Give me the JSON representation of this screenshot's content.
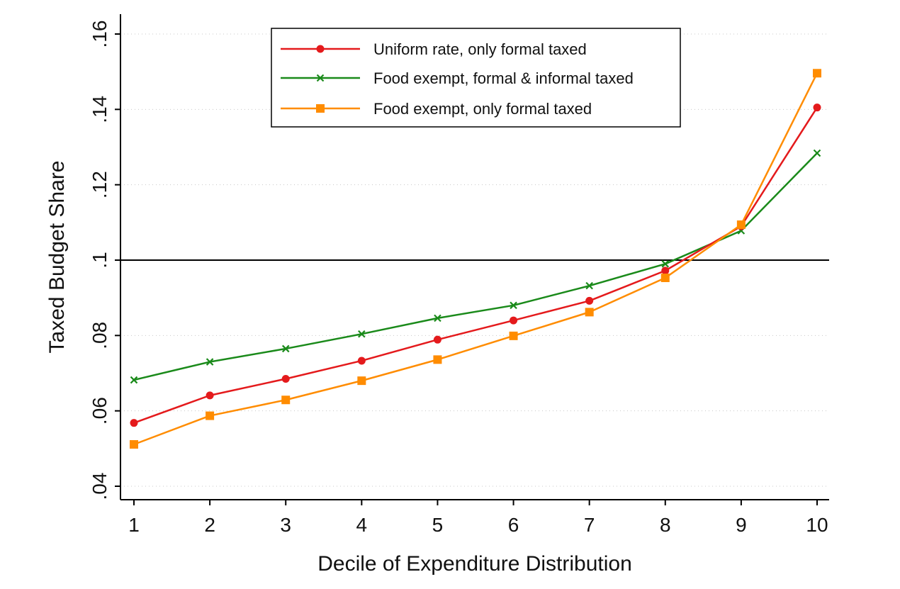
{
  "chart_data": {
    "type": "line",
    "title": "",
    "xlabel": "Decile of Expenditure Distribution",
    "ylabel": "Taxed Budget Share",
    "x": [
      1,
      2,
      3,
      4,
      5,
      6,
      7,
      8,
      9,
      10
    ],
    "x_ticks": [
      "1",
      "2",
      "3",
      "4",
      "5",
      "6",
      "7",
      "8",
      "9",
      "10"
    ],
    "ylim": [
      0.04,
      0.16
    ],
    "y_ticks": [
      0.04,
      0.06,
      0.08,
      0.1,
      0.12,
      0.14,
      0.16
    ],
    "y_tick_labels": [
      ".04",
      ".06",
      ".08",
      ".1",
      ".12",
      ".14",
      ".16"
    ],
    "reference_line_y": 0.1,
    "grid": "horizontal dotted",
    "legend_position": "top-center",
    "series": [
      {
        "name": "Uniform rate, only formal taxed",
        "color": "#e41a1c",
        "marker": "circle",
        "values": [
          0.0568,
          0.0641,
          0.0685,
          0.0733,
          0.0789,
          0.084,
          0.0892,
          0.0972,
          0.109,
          0.1405
        ]
      },
      {
        "name": "Food exempt, formal & informal taxed",
        "color": "#1a8a1a",
        "marker": "x",
        "values": [
          0.0682,
          0.073,
          0.0765,
          0.0804,
          0.0846,
          0.088,
          0.0932,
          0.099,
          0.1078,
          0.1284
        ]
      },
      {
        "name": "Food exempt, only formal taxed",
        "color": "#ff8c00",
        "marker": "square",
        "values": [
          0.0511,
          0.0587,
          0.0629,
          0.068,
          0.0736,
          0.0799,
          0.0862,
          0.0953,
          0.1094,
          0.1496
        ]
      }
    ]
  }
}
